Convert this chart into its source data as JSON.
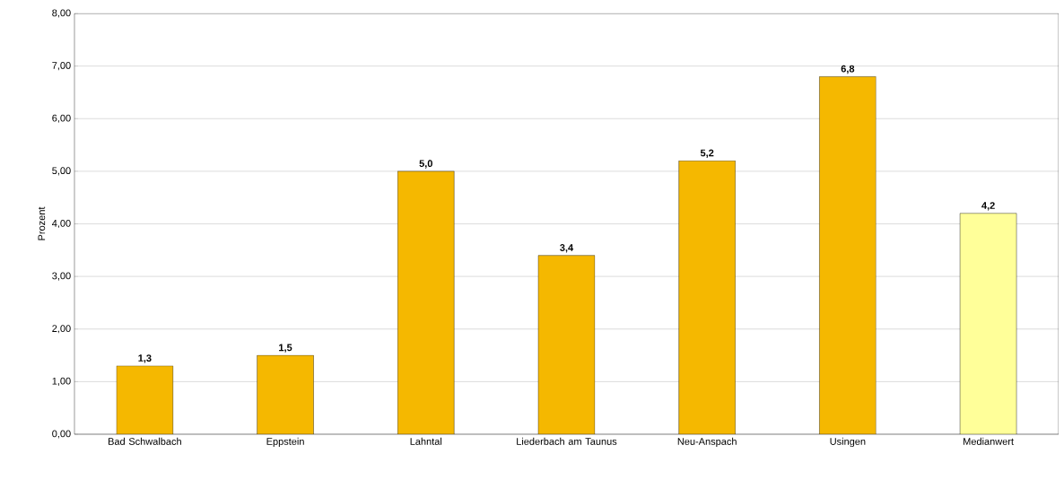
{
  "chart_data": {
    "type": "bar",
    "ylabel": "Prozent",
    "categories": [
      "Bad Schwalbach",
      "Eppstein",
      "Lahntal",
      "Liederbach am Taunus",
      "Neu-Anspach",
      "Usingen",
      "Medianwert"
    ],
    "values": [
      1.3,
      1.5,
      5.0,
      3.4,
      5.2,
      6.8,
      4.2
    ],
    "colors": [
      "#f5b800",
      "#f5b800",
      "#f5b800",
      "#f5b800",
      "#f5b800",
      "#f5b800",
      "#ffff99"
    ],
    "value_labels": [
      "1,3",
      "1,5",
      "5,0",
      "3,4",
      "5,2",
      "6,8",
      "4,2"
    ],
    "ylim": [
      0,
      8
    ],
    "yticks": [
      {
        "value": 0,
        "label": "0,00"
      },
      {
        "value": 1,
        "label": "1,00"
      },
      {
        "value": 2,
        "label": "2,00"
      },
      {
        "value": 3,
        "label": "3,00"
      },
      {
        "value": 4,
        "label": "4,00"
      },
      {
        "value": 5,
        "label": "5,00"
      },
      {
        "value": 6,
        "label": "6,00"
      },
      {
        "value": 7,
        "label": "7,00"
      },
      {
        "value": 8,
        "label": "8,00"
      }
    ],
    "grid": "y"
  }
}
